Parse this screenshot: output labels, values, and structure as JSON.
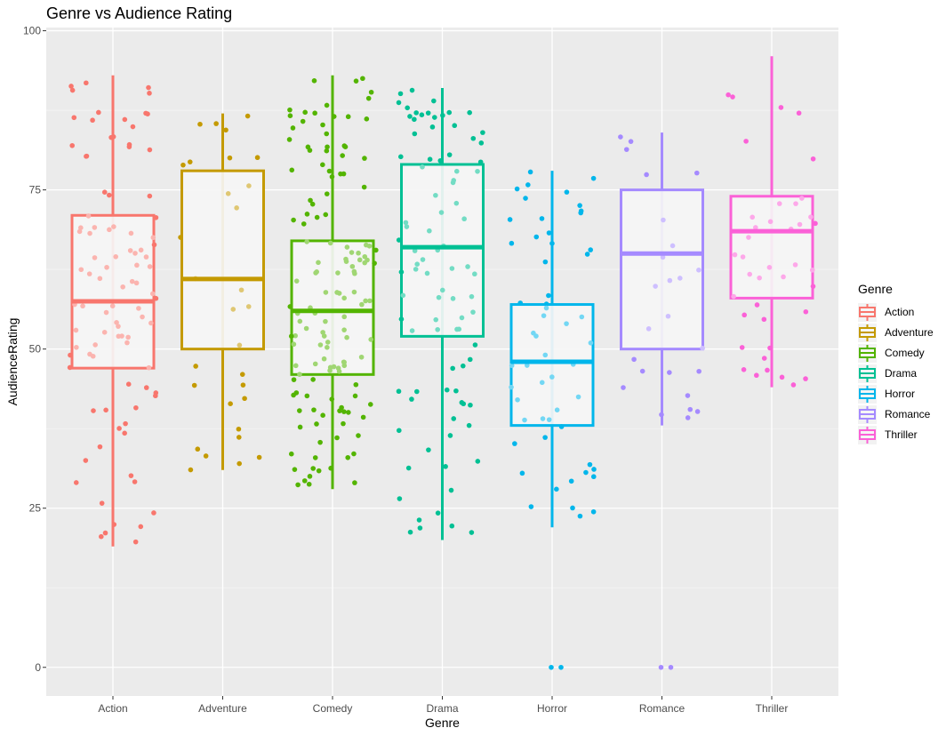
{
  "chart_data": {
    "type": "box",
    "title": "Genre vs Audience Rating",
    "xlabel": "Genre",
    "ylabel": "AudienceRating",
    "ylim": [
      -4.5,
      100.5
    ],
    "yticks": [
      0,
      25,
      50,
      75,
      100
    ],
    "categories": [
      "Action",
      "Adventure",
      "Comedy",
      "Drama",
      "Horror",
      "Romance",
      "Thriller"
    ],
    "colors": [
      "#F8766D",
      "#C49A00",
      "#53B400",
      "#00C094",
      "#00B6EB",
      "#A58AFF",
      "#FB61D7"
    ],
    "grid": true,
    "legend": {
      "title": "Genre",
      "position": "right"
    },
    "boxes": [
      {
        "name": "Action",
        "min": 19,
        "q1": 47,
        "median": 57.5,
        "q3": 71,
        "max": 93
      },
      {
        "name": "Adventure",
        "min": 31,
        "q1": 50,
        "median": 61,
        "q3": 78,
        "max": 87
      },
      {
        "name": "Comedy",
        "min": 28,
        "q1": 46,
        "median": 56,
        "q3": 67,
        "max": 93
      },
      {
        "name": "Drama",
        "min": 20,
        "q1": 52,
        "median": 66,
        "q3": 79,
        "max": 91
      },
      {
        "name": "Horror",
        "min": 22,
        "q1": 38,
        "median": 48,
        "q3": 57,
        "max": 78
      },
      {
        "name": "Romance",
        "min": 38,
        "q1": 50,
        "median": 65,
        "q3": 75,
        "max": 84
      },
      {
        "name": "Thriller",
        "min": 44,
        "q1": 58,
        "median": 68.5,
        "q3": 74,
        "max": 96
      }
    ],
    "outliers": [
      {
        "name": "Horror",
        "values": [
          0,
          0
        ]
      },
      {
        "name": "Romance",
        "values": [
          0,
          0
        ]
      }
    ]
  }
}
